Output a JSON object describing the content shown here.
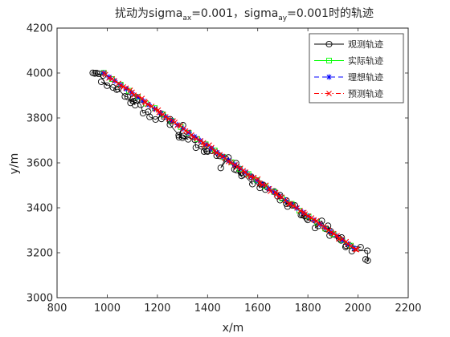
{
  "chart_data": {
    "type": "line",
    "title": {
      "prefix": "扰动为sigma",
      "sub1": "ax",
      "middle": "=0.001，sigma",
      "sub2": "ay",
      "suffix": "=0.001时的轨迹"
    },
    "xlabel": "x/m",
    "ylabel": "y/m",
    "xlim": [
      800,
      2200
    ],
    "ylim": [
      3000,
      4200
    ],
    "xticks": [
      "800",
      "1000",
      "1200",
      "1400",
      "1600",
      "1800",
      "2000",
      "2200"
    ],
    "yticks": [
      "3000",
      "3200",
      "3400",
      "3600",
      "3800",
      "4000",
      "4200"
    ],
    "grid": false,
    "legend_position": "top-right",
    "series": [
      {
        "name": "观测轨迹",
        "color": "#000000",
        "style": "solid",
        "marker": "circle"
      },
      {
        "name": "实际轨迹",
        "color": "#00ff00",
        "style": "solid",
        "marker": "square"
      },
      {
        "name": "理想轨迹",
        "color": "#0000ff",
        "style": "dashed",
        "marker": "asterisk"
      },
      {
        "name": "预测轨迹",
        "color": "#ff0000",
        "style": "dashdot",
        "marker": "x"
      }
    ],
    "trajectory": {
      "start": [
        985,
        4000
      ],
      "end": [
        1995,
        3212
      ],
      "observed_start": [
        935,
        4005
      ],
      "observed_end": [
        2035,
        3180
      ],
      "observation_noise": 18,
      "points": 90
    }
  }
}
